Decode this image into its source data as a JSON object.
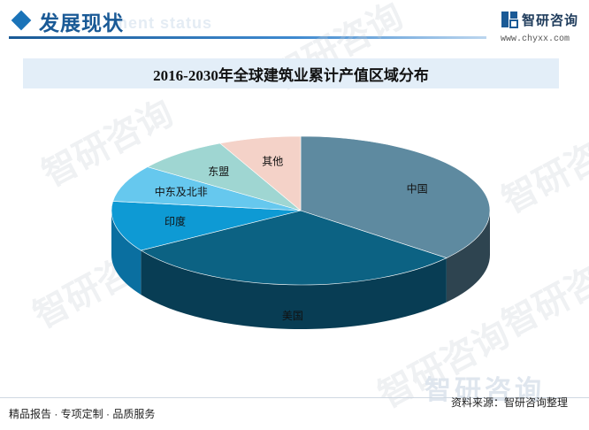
{
  "header": {
    "title": "发展现状",
    "ghost_text": "ment status",
    "brand": "智研咨询",
    "site": "www.chyxx.com"
  },
  "colors": {
    "accent": "#1a5a96",
    "title_bar_bg": "#e3eef8"
  },
  "watermark_text": "智研咨询",
  "chart_data": {
    "type": "pie",
    "style": "3d",
    "title": "2016-2030年全球建筑业累计产值区域分布",
    "legend": "none",
    "categories": [
      "中国",
      "美国",
      "印度",
      "中东及北非",
      "东盟",
      "其他"
    ],
    "values": [
      36,
      30,
      11,
      8,
      8,
      7
    ],
    "colors": [
      "#5e8aa0",
      "#0c6283",
      "#0e9ad4",
      "#66c8ee",
      "#9fd6d2",
      "#f4d2c8"
    ],
    "side_colors": [
      "#2e4450",
      "#083d54",
      "#0a6fa0",
      "#40a6cc",
      "#74b4b0",
      "#d6aea2"
    ]
  },
  "footer": {
    "left": "精品报告 · 专项定制 · 品质服务",
    "right": "资料来源：智研咨询整理",
    "bg_brand": "智研咨询"
  }
}
